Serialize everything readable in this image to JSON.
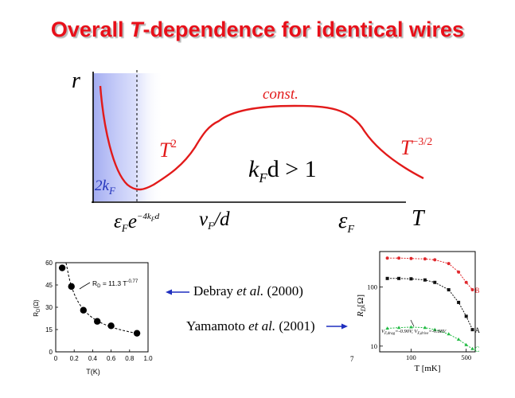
{
  "slide": {
    "title_before": "Overall ",
    "title_var": "T",
    "title_after": "-dependence for identical wires",
    "page_number": "7"
  },
  "sketch": {
    "y_axis": "r",
    "x_axis": "T",
    "low_T_marker": "2k",
    "low_T_marker_sub": "F",
    "regime_low": "T",
    "regime_low_exp": "2",
    "regime_mid": "const.",
    "regime_high": "T",
    "regime_high_exp": "−3/2",
    "condition": "k",
    "condition_sub": "F",
    "condition_rest": "d > 1",
    "tick_1": "ε",
    "tick_1_sub": "F",
    "tick_1_mid": "e",
    "tick_1_sup": "−4k",
    "tick_1_sup_sub": "F",
    "tick_1_sup_end": "d",
    "tick_2": "v",
    "tick_2_sub": "F",
    "tick_2_rest": "/d",
    "tick_3": "ε",
    "tick_3_sub": "F",
    "colors": {
      "curve": "#e21a1a",
      "shade": "#3347e0",
      "text_blue": "#2233bb"
    }
  },
  "references": {
    "debray_name": "Debray",
    "debray_etal": "et al.",
    "debray_year": "(2000)",
    "yamamoto_name": "Yamamoto",
    "yamamoto_etal": "et al.",
    "yamamoto_year": "(2001)"
  },
  "chart_data": [
    {
      "type": "scatter",
      "title": "",
      "xlabel": "T(K)",
      "ylabel": "R",
      "ylabel_sub": "D",
      "ylabel_unit": "(Ω)",
      "xlim": [
        0,
        1.0
      ],
      "ylim": [
        0,
        60
      ],
      "xticks": [
        "0",
        "0.2",
        "0.4",
        "0.6",
        "0.8",
        "1.0"
      ],
      "yticks": [
        "0",
        "15",
        "30",
        "45",
        "60"
      ],
      "fit_label_pre": "R",
      "fit_label_sub": "D",
      "fit_label_post": " = 11.3 T",
      "fit_label_exp": "-0.77",
      "series": [
        {
          "x": [
            0.07,
            0.17,
            0.3,
            0.45,
            0.6,
            0.88
          ],
          "y": [
            56.5,
            44,
            28,
            20.5,
            17.5,
            12.5
          ]
        }
      ],
      "fit": {
        "coefficient": 11.3,
        "exponent": -0.77
      }
    },
    {
      "type": "line",
      "title": "",
      "xlabel": "T [mK]",
      "ylabel": "R",
      "ylabel_sub": "D",
      "ylabel_unit": "[Ω]",
      "x_scale": "log",
      "y_scale": "log",
      "xticks": [
        "100",
        "500"
      ],
      "yticks": [
        "10",
        "100"
      ],
      "annotation": "V",
      "annotation_sub": "F,drag",
      "annotation_val": "=-0.90V, V",
      "annotation_sub2": "F,drive",
      "annotation_val2": "=-0.88V",
      "series": [
        {
          "name": "B",
          "color": "#e0282d",
          "x": [
            50,
            70,
            100,
            150,
            200,
            300,
            400,
            500,
            600
          ],
          "y": [
            310,
            310,
            305,
            300,
            290,
            250,
            180,
            120,
            90
          ]
        },
        {
          "name": "A",
          "color": "#111111",
          "x": [
            50,
            70,
            100,
            150,
            200,
            300,
            400,
            500,
            600
          ],
          "y": [
            140,
            140,
            138,
            132,
            120,
            90,
            55,
            32,
            19
          ]
        },
        {
          "name": "C",
          "color": "#22bb44",
          "x": [
            50,
            70,
            100,
            150,
            200,
            300,
            400,
            500,
            600
          ],
          "y": [
            20,
            20.5,
            21,
            20.5,
            19,
            16,
            13,
            10.5,
            9
          ]
        }
      ]
    }
  ]
}
